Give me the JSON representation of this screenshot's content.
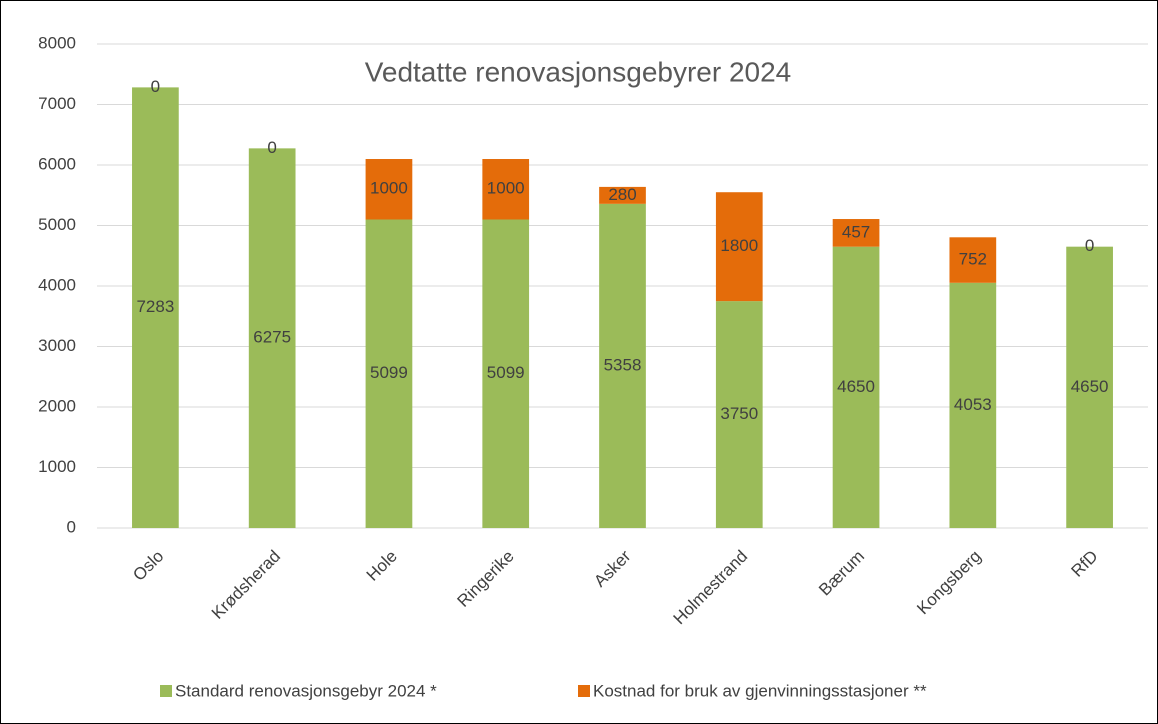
{
  "chart_data": {
    "type": "stacked_bar",
    "title": "Vedtatte renovasjonsgebyrer 2024",
    "categories": [
      "Oslo",
      "Krødsherad",
      "Hole",
      "Ringerike",
      "Asker",
      "Holmestrand",
      "Bærum",
      "Kongsberg",
      "RfD"
    ],
    "series": [
      {
        "name": "Standard renovasjonsgebyr 2024 *",
        "color": "#9bbb59",
        "values": [
          7283,
          6275,
          5099,
          5099,
          5358,
          3750,
          4650,
          4053,
          4650
        ]
      },
      {
        "name": "Kostnad for bruk av gjenvinningsstasjoner **",
        "color": "#e46c0a",
        "values": [
          0,
          0,
          1000,
          1000,
          280,
          1800,
          457,
          752,
          0
        ]
      }
    ],
    "ylim": [
      0,
      8000
    ],
    "yticks": [
      0,
      1000,
      2000,
      3000,
      4000,
      5000,
      6000,
      7000,
      8000
    ],
    "grid": true,
    "legend": "bottom"
  }
}
